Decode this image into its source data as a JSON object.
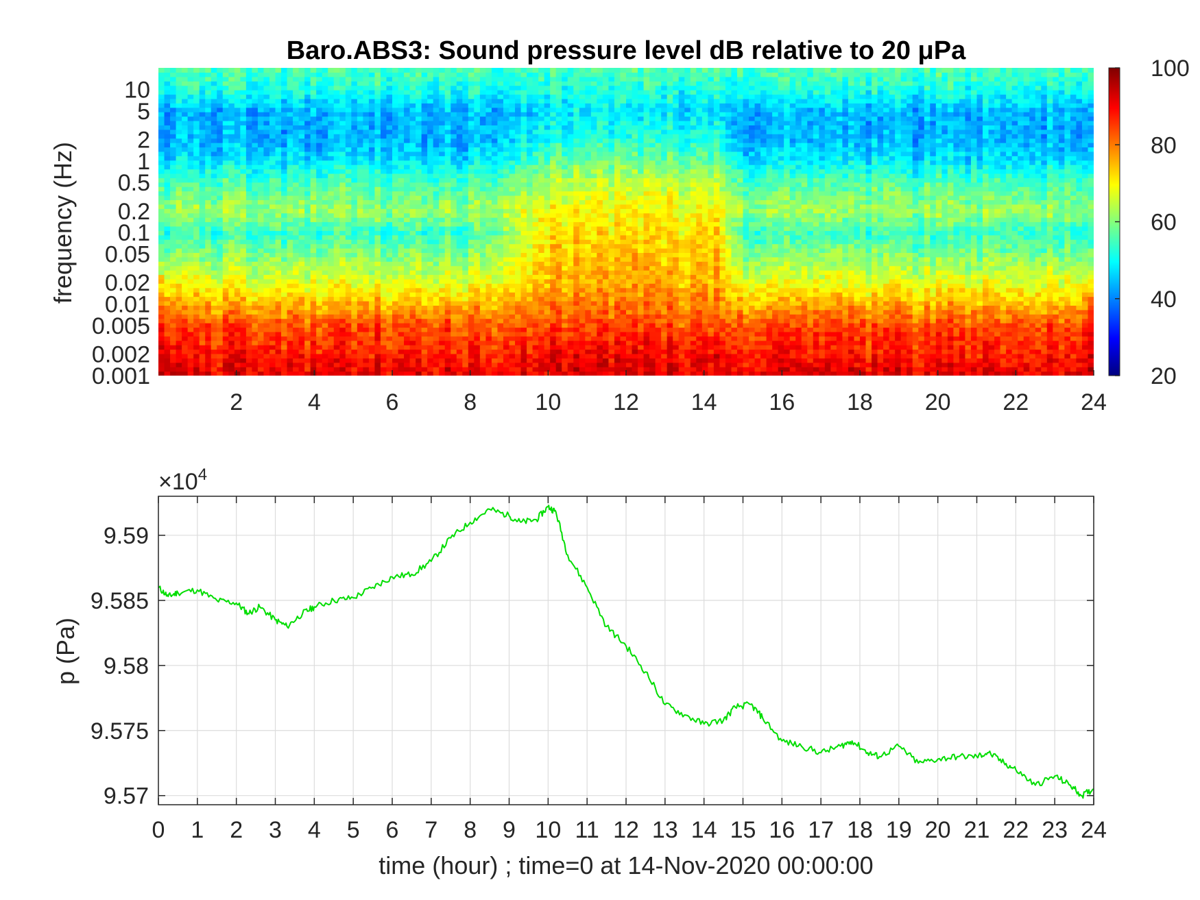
{
  "chart_data": [
    {
      "type": "heatmap",
      "title": "Baro.ABS3: Sound pressure level dB relative to 20 μPa",
      "xlabel": "",
      "ylabel": "frequency (Hz)",
      "xlim": [
        0,
        24
      ],
      "x_ticks": [
        "2",
        "4",
        "6",
        "8",
        "10",
        "12",
        "14",
        "16",
        "18",
        "20",
        "22",
        "24"
      ],
      "x_tick_values": [
        2,
        4,
        6,
        8,
        10,
        12,
        14,
        16,
        18,
        20,
        22,
        24
      ],
      "ylim": [
        0.001,
        20
      ],
      "yscale": "log",
      "y_ticks": [
        "10",
        "5",
        "2",
        "1",
        "0.5",
        "0.2",
        "0.1",
        "0.05",
        "0.02",
        "0.01",
        "0.005",
        "0.002",
        "0.001"
      ],
      "y_tick_values": [
        10,
        5,
        2,
        1,
        0.5,
        0.2,
        0.1,
        0.05,
        0.02,
        0.01,
        0.005,
        0.002,
        0.001
      ],
      "colormap": "jet",
      "colorbar": {
        "clim": [
          20,
          100
        ],
        "ticks": [
          "100",
          "80",
          "60",
          "40",
          "20"
        ],
        "tick_values": [
          100,
          80,
          60,
          40,
          20
        ]
      },
      "intensity_profile": {
        "frequency_hz": [
          0.001,
          0.002,
          0.005,
          0.01,
          0.02,
          0.05,
          0.1,
          0.2,
          0.5,
          1,
          2,
          5,
          10,
          20
        ],
        "db_quiet_period": [
          92,
          88,
          84,
          76,
          68,
          60,
          54,
          62,
          56,
          48,
          44,
          44,
          52,
          56
        ],
        "db_active_period": [
          92,
          90,
          84,
          80,
          76,
          74,
          72,
          70,
          64,
          58,
          52,
          48,
          52,
          56
        ],
        "active_period_hours": [
          9,
          14.5
        ]
      }
    },
    {
      "type": "line",
      "title": "",
      "xlabel": "time (hour) ; time=0 at 14-Nov-2020 00:00:00",
      "ylabel": "p (Pa)",
      "y_exponent_label": "×10",
      "y_exponent": "4",
      "xlim": [
        0,
        24
      ],
      "ylim": [
        95693,
        95930
      ],
      "x_ticks": [
        "0",
        "1",
        "2",
        "3",
        "4",
        "5",
        "6",
        "7",
        "8",
        "9",
        "10",
        "11",
        "12",
        "13",
        "14",
        "15",
        "16",
        "17",
        "18",
        "19",
        "20",
        "21",
        "22",
        "23",
        "24"
      ],
      "x_tick_values": [
        0,
        1,
        2,
        3,
        4,
        5,
        6,
        7,
        8,
        9,
        10,
        11,
        12,
        13,
        14,
        15,
        16,
        17,
        18,
        19,
        20,
        21,
        22,
        23,
        24
      ],
      "y_ticks": [
        "9.57",
        "9.575",
        "9.58",
        "9.585",
        "9.59"
      ],
      "y_tick_values": [
        95700,
        95750,
        95800,
        95850,
        95900
      ],
      "grid": true,
      "line_color": "#00dd00",
      "series": [
        {
          "x": [
            0,
            0.25,
            0.5,
            1,
            1.5,
            2,
            2.3,
            2.6,
            3,
            3.3,
            3.7,
            4,
            4.5,
            5,
            5.5,
            6,
            6.5,
            7,
            7.5,
            8,
            8.5,
            9,
            9.3,
            9.7,
            10,
            10.2,
            10.5,
            11,
            11.5,
            12,
            12.5,
            13,
            13.5,
            14,
            14.5,
            14.8,
            15.2,
            15.5,
            16,
            16.5,
            17,
            17.5,
            17.8,
            18.2,
            18.5,
            19,
            19.5,
            20,
            20.5,
            21,
            21.3,
            21.7,
            22,
            22.5,
            23,
            23.4,
            23.7,
            24
          ],
          "y": [
            95860,
            95853,
            95856,
            95858,
            95850,
            95848,
            95840,
            95845,
            95835,
            95830,
            95840,
            95845,
            95850,
            95852,
            95860,
            95868,
            95870,
            95880,
            95898,
            95910,
            95920,
            95915,
            95910,
            95912,
            95922,
            95918,
            95885,
            95860,
            95830,
            95815,
            95795,
            95770,
            95762,
            95755,
            95758,
            95768,
            95770,
            95760,
            95742,
            95738,
            95733,
            95738,
            95742,
            95733,
            95730,
            95738,
            95725,
            95728,
            95730,
            95730,
            95733,
            95725,
            95720,
            95708,
            95715,
            95708,
            95700,
            95705
          ]
        }
      ]
    }
  ]
}
